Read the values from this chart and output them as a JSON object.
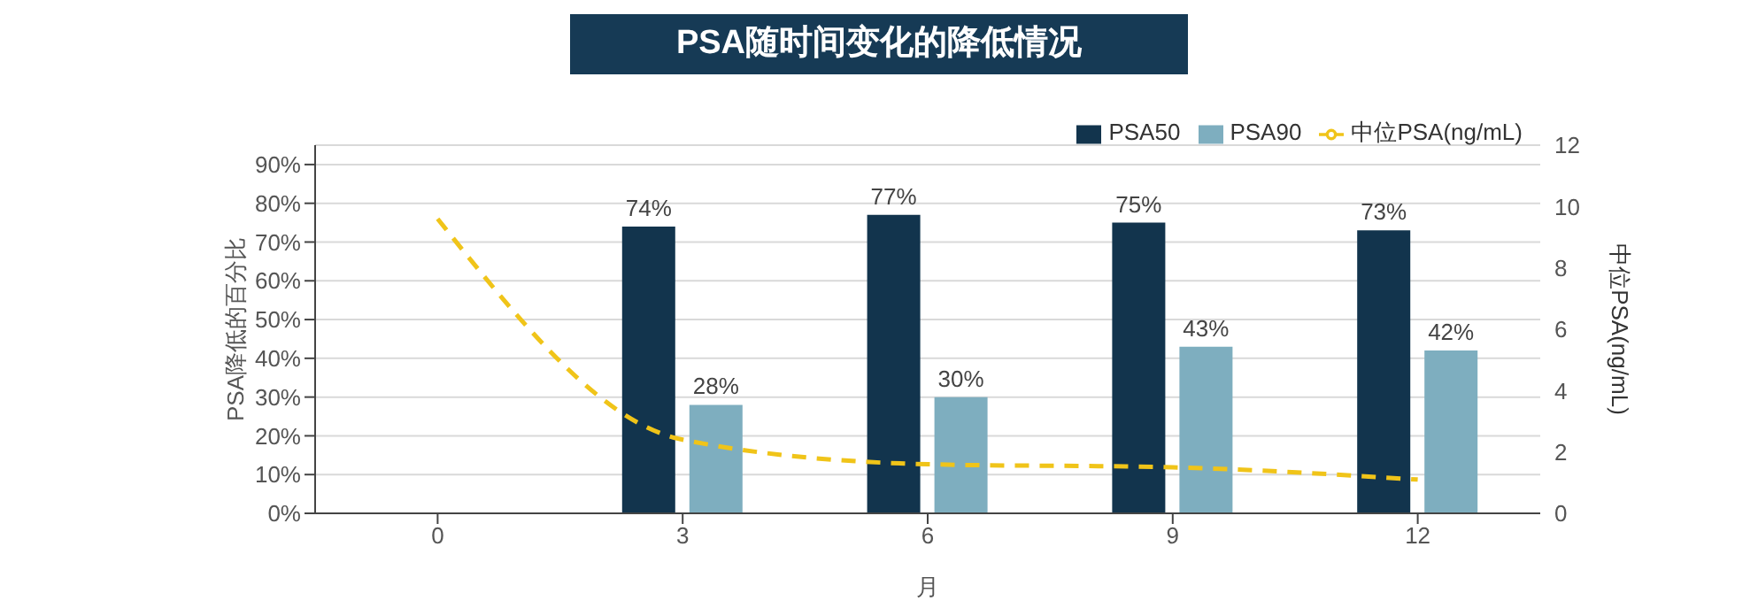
{
  "chart_data": {
    "type": "bar",
    "title": "PSA随时间变化的降低情况",
    "xlabel": "月",
    "ylabel": "PSA降低的百分比",
    "y2label": "中位PSA(ng/mL)",
    "categories": [
      "0",
      "3",
      "6",
      "9",
      "12"
    ],
    "series": [
      {
        "name": "PSA50",
        "color": "#12344d",
        "values": [
          null,
          74,
          77,
          75,
          73
        ],
        "value_labels": [
          null,
          "74%",
          "77%",
          "75%",
          "73%"
        ]
      },
      {
        "name": "PSA90",
        "color": "#7eaebf",
        "values": [
          null,
          28,
          30,
          43,
          42
        ],
        "value_labels": [
          null,
          "28%",
          "30%",
          "43%",
          "42%"
        ]
      },
      {
        "name": "中位PSA(ng/mL)",
        "type": "line",
        "axis": "y2",
        "color": "#f0c419",
        "line_style": "dashed",
        "marker": "none",
        "values": [
          9.6,
          2.4,
          1.6,
          1.5,
          1.1
        ]
      }
    ],
    "ylim": [
      0,
      95
    ],
    "yticks": [
      {
        "value": 0,
        "label": "0%"
      },
      {
        "value": 10,
        "label": "10%"
      },
      {
        "value": 20,
        "label": "20%"
      },
      {
        "value": 30,
        "label": "30%"
      },
      {
        "value": 40,
        "label": "40%"
      },
      {
        "value": 50,
        "label": "50%"
      },
      {
        "value": 60,
        "label": "60%"
      },
      {
        "value": 70,
        "label": "70%"
      },
      {
        "value": 80,
        "label": "80%"
      },
      {
        "value": 90,
        "label": "90%"
      }
    ],
    "y2lim": [
      0,
      12
    ],
    "y2ticks": [
      0,
      2,
      4,
      6,
      8,
      10,
      12
    ],
    "grid": "y",
    "legend": "top right"
  }
}
